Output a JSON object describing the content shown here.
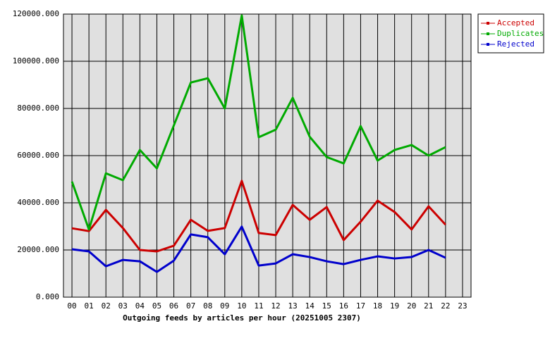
{
  "chart_data": {
    "type": "line",
    "title": "Outgoing feeds by articles per hour (20251005 2307)",
    "categories": [
      "00",
      "01",
      "02",
      "03",
      "04",
      "05",
      "06",
      "07",
      "08",
      "09",
      "10",
      "11",
      "12",
      "13",
      "14",
      "15",
      "16",
      "17",
      "18",
      "19",
      "20",
      "21",
      "22",
      "23"
    ],
    "series": [
      {
        "name": "Accepted",
        "color": "#cc0000",
        "values": [
          29200,
          28000,
          37000,
          29300,
          20000,
          19400,
          21800,
          32800,
          28100,
          29300,
          49300,
          27200,
          26300,
          39100,
          32800,
          38200,
          24200,
          32000,
          40900,
          36100,
          28700,
          38500,
          30700,
          null
        ]
      },
      {
        "name": "Duplicates",
        "color": "#00aa00",
        "values": [
          49000,
          28700,
          52500,
          49600,
          62400,
          54600,
          72800,
          91000,
          92800,
          80000,
          119400,
          67800,
          71000,
          84500,
          68000,
          59400,
          56700,
          72500,
          57900,
          62400,
          64500,
          60000,
          63600,
          null
        ]
      },
      {
        "name": "Rejected",
        "color": "#0000cc",
        "values": [
          20300,
          19400,
          13100,
          15800,
          15200,
          10700,
          15500,
          26600,
          25400,
          18200,
          29900,
          13400,
          14300,
          18200,
          17000,
          15200,
          14000,
          15800,
          17300,
          16400,
          17000,
          20000,
          16700,
          null
        ]
      }
    ],
    "ylim": [
      0,
      120000
    ],
    "yticks": [
      {
        "value": 0,
        "label": "0.000"
      },
      {
        "value": 20000,
        "label": "20000.000"
      },
      {
        "value": 40000,
        "label": "40000.000"
      },
      {
        "value": 60000,
        "label": "60000.000"
      },
      {
        "value": 80000,
        "label": "80000.000"
      },
      {
        "value": 100000,
        "label": "100000.000"
      },
      {
        "value": 120000,
        "label": "120000.000"
      }
    ],
    "grid": true,
    "legend": "top-right"
  }
}
